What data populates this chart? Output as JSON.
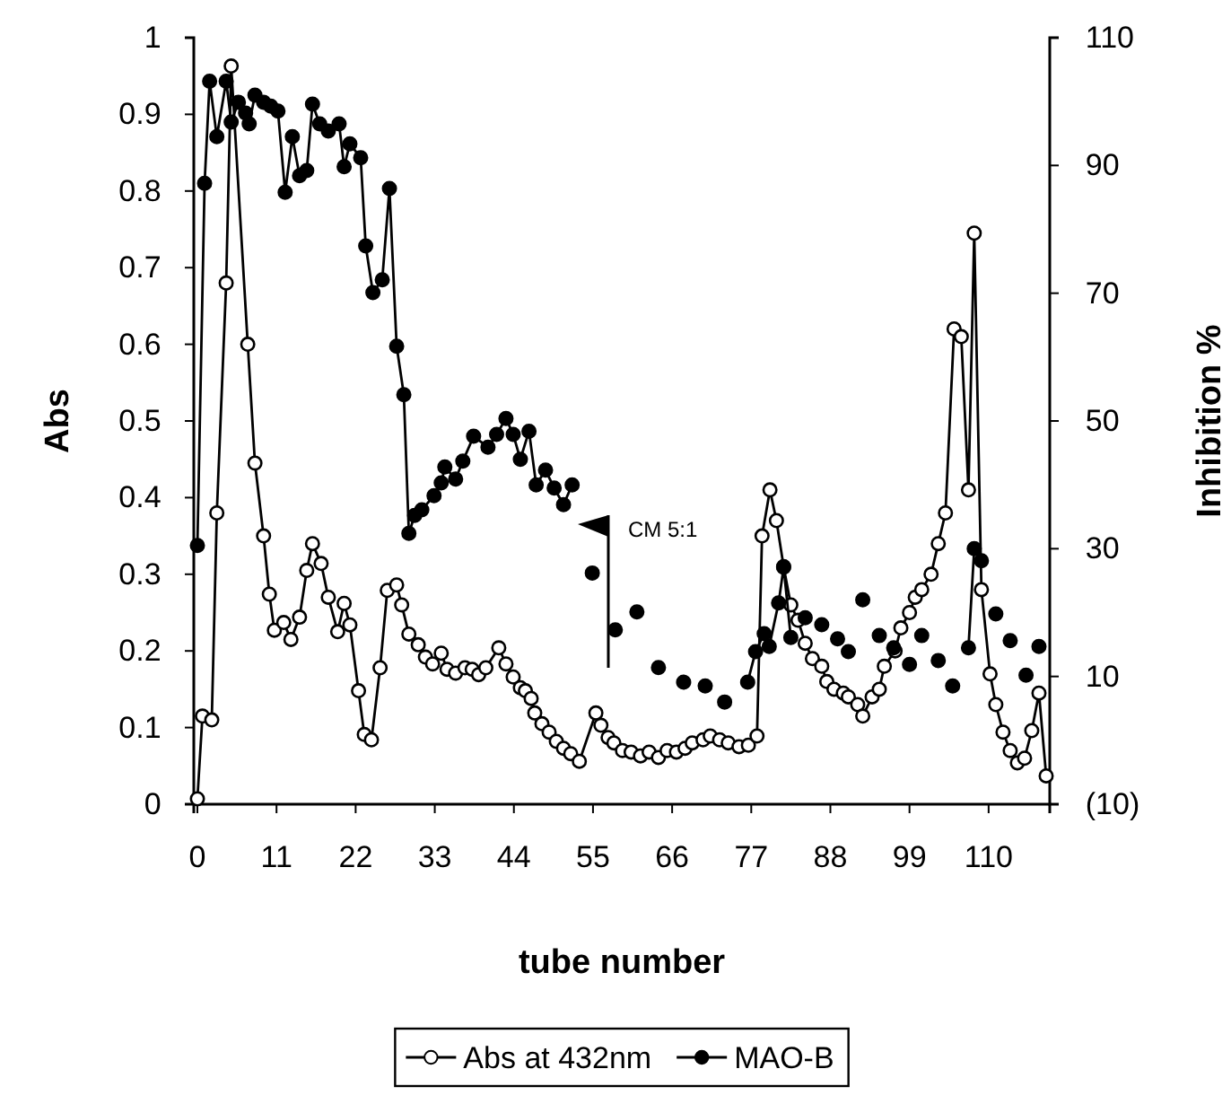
{
  "chart_data": {
    "type": "line",
    "xlabel": "tube number",
    "ylabel": "Abs",
    "y2label": "Inhibition %",
    "xlim": [
      -0.5,
      118.5
    ],
    "xticks": [
      0,
      11,
      22,
      33,
      44,
      55,
      66,
      77,
      88,
      99,
      110
    ],
    "ylim": [
      0,
      1
    ],
    "yticks": [
      0,
      0.1,
      0.2,
      0.3,
      0.4,
      0.5,
      0.6,
      0.7,
      0.8,
      0.9,
      1
    ],
    "y2lim": [
      -10,
      110
    ],
    "y2ticks": [
      {
        "value": -10,
        "label": "(10)"
      },
      10,
      30,
      50,
      70,
      90,
      110
    ],
    "marker": "circle",
    "legend": "bottom",
    "grid": false,
    "annotations": [
      "CM 5:1"
    ],
    "series": [
      {
        "name": "Abs at 432nm",
        "color": "#000000",
        "axis": "y",
        "x": [
          0,
          0.7,
          2,
          2.7,
          4,
          4.7,
          7,
          8,
          9.2,
          10,
          10.7,
          12,
          13,
          14.2,
          15.2,
          16,
          17.2,
          18.2,
          19.5,
          20.4,
          21.2,
          22.4,
          23.2,
          24.2,
          25.4,
          26.4,
          27.7,
          28.4,
          29.4,
          30.7,
          31.7,
          32.7,
          33.9,
          34.7,
          35.9,
          37.2,
          38.2,
          39.1,
          40.1,
          41.9,
          42.9,
          43.9,
          44.9,
          45.6,
          46.4,
          46.9,
          47.9,
          48.9,
          49.9,
          50.9,
          51.9,
          53.1,
          55.4,
          56.1,
          57.1,
          57.9,
          59.1,
          60.3,
          61.6,
          62.8,
          64.1,
          65.3,
          66.6,
          67.8,
          68.8,
          70.3,
          71.3,
          72.6,
          73.8,
          75.3,
          76.6,
          77.8,
          78.5,
          79.6,
          80.5,
          81.5,
          82.5,
          83.5,
          84.5,
          85.5,
          86.8,
          87.5,
          88.5,
          89.8,
          90.5,
          91.8,
          92.5,
          93.8,
          94.8,
          95.5,
          97,
          97.8,
          99,
          99.8,
          100.7,
          102,
          103,
          104,
          105.2,
          106.2,
          107.2,
          108,
          109,
          110.2,
          111,
          112,
          113,
          114,
          115,
          116,
          117,
          118
        ],
        "values": [
          0.007,
          0.115,
          0.11,
          0.38,
          0.68,
          0.963,
          0.6,
          0.445,
          0.35,
          0.274,
          0.227,
          0.237,
          0.215,
          0.244,
          0.305,
          0.34,
          0.314,
          0.27,
          0.225,
          0.262,
          0.234,
          0.148,
          0.091,
          0.084,
          0.178,
          0.279,
          0.286,
          0.26,
          0.222,
          0.208,
          0.192,
          0.183,
          0.197,
          0.176,
          0.171,
          0.178,
          0.176,
          0.169,
          0.178,
          0.204,
          0.183,
          0.166,
          0.152,
          0.148,
          0.138,
          0.119,
          0.105,
          0.094,
          0.082,
          0.073,
          0.066,
          0.056,
          0.119,
          0.103,
          0.087,
          0.08,
          0.07,
          0.068,
          0.063,
          0.068,
          0.061,
          0.07,
          0.068,
          0.073,
          0.08,
          0.084,
          0.089,
          0.084,
          0.08,
          0.075,
          0.077,
          0.089,
          0.35,
          0.41,
          0.37,
          0.31,
          0.26,
          0.24,
          0.21,
          0.19,
          0.18,
          0.16,
          0.15,
          0.145,
          0.14,
          0.13,
          0.115,
          0.14,
          0.15,
          0.18,
          0.2,
          0.23,
          0.25,
          0.27,
          0.28,
          0.3,
          0.34,
          0.38,
          0.62,
          0.61,
          0.41,
          0.745,
          0.28,
          0.17,
          0.13,
          0.094,
          0.07,
          0.054,
          0.06,
          0.096,
          0.145,
          0.037
        ]
      },
      {
        "name": "MAO-B",
        "color": "#000000",
        "axis": "y2",
        "x": [
          0,
          1,
          1.7,
          2.7,
          4,
          4.7,
          5.7,
          6.7,
          7.2,
          8,
          9.2,
          10.2,
          11.2,
          12.2,
          13.2,
          14.2,
          15.2,
          16,
          17,
          18.2,
          19.7,
          20.4,
          21.2,
          22.7,
          23.4,
          24.4,
          25.7,
          26.7,
          27.7,
          28.7,
          29.4,
          30.2,
          31.2,
          32.9,
          33.9,
          34.4,
          35.9,
          36.9,
          38.4,
          40.4,
          41.6,
          42.9,
          43.9,
          44.9,
          46.1,
          47.1,
          48.4,
          49.6,
          50.9,
          52.1,
          53,
          54.9,
          56,
          58.1,
          59,
          61.1,
          62,
          64.1,
          65,
          67.6,
          69,
          70.6,
          72,
          73.3,
          75,
          76.5,
          77.6,
          78.8,
          79.5,
          80.8,
          81.5,
          82.5,
          83,
          84.5,
          85,
          86.8,
          88,
          89,
          90,
          90.5,
          91,
          92.5,
          93,
          94.8,
          95,
          96.8,
          98,
          99,
          100,
          100.7,
          102,
          103,
          104,
          105,
          106,
          107.2,
          108,
          109,
          110,
          111,
          112,
          113,
          114,
          115.2,
          116,
          117
        ],
        "values": [
          30.5,
          87.2,
          103.2,
          94.5,
          103.2,
          96.8,
          99.9,
          98.2,
          96.5,
          101,
          99.9,
          99.3,
          98.5,
          85.8,
          94.5,
          88.4,
          89.2,
          99.6,
          96.5,
          95.4,
          96.5,
          89.8,
          93.4,
          91.2,
          77.4,
          70.1,
          72.1,
          86.4,
          61.7,
          54.1,
          32.4,
          35.2,
          36.1,
          38.3,
          40.3,
          42.8,
          40.9,
          43.7,
          47.6,
          45.9,
          47.9,
          50.4,
          47.9,
          44,
          48.4,
          40,
          42.3,
          39.5,
          36.9,
          40,
          null,
          26.2,
          null,
          17.3,
          null,
          20.1,
          null,
          11.4,
          null,
          9.1,
          null,
          8.5,
          null,
          6,
          null,
          9.1,
          13.9,
          16.7,
          14.7,
          21.5,
          27.1,
          16.1,
          null,
          19.2,
          null,
          18.1,
          null,
          15.9,
          null,
          13.9,
          null,
          22,
          null,
          16.4,
          null,
          14.5,
          null,
          11.9,
          null,
          16.4,
          null,
          12.5,
          null,
          8.5,
          null,
          14.5,
          30,
          28.1,
          null,
          19.8,
          null,
          15.6,
          null,
          10.2,
          null,
          14.7
        ]
      }
    ]
  }
}
